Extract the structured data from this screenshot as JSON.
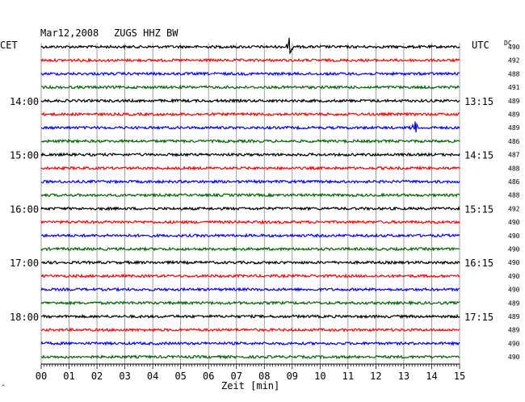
{
  "header": {
    "date": "Mar12,2008",
    "station": "ZUGS HHZ BW",
    "left_tz": "CET",
    "right_tz": "UTC",
    "dc_label": "DC"
  },
  "chart_data": {
    "type": "line",
    "title": "Mar12,2008   ZUGS HHZ BW",
    "xlabel": "Zeit [min]",
    "xlim": [
      0,
      15
    ],
    "x_ticks": [
      "00",
      "01",
      "02",
      "03",
      "04",
      "05",
      "06",
      "07",
      "08",
      "09",
      "10",
      "11",
      "12",
      "13",
      "14",
      "15"
    ],
    "trace_minutes": 15,
    "trace_colors": [
      "#000000",
      "#ff0000",
      "#0000ff",
      "#006600"
    ],
    "left_hour_labels": [
      {
        "row": 4,
        "text": "14:00"
      },
      {
        "row": 8,
        "text": "15:00"
      },
      {
        "row": 12,
        "text": "16:00"
      },
      {
        "row": 16,
        "text": "17:00"
      },
      {
        "row": 20,
        "text": "18:00"
      }
    ],
    "right_hour_labels": [
      {
        "row": 4,
        "text": "13:15"
      },
      {
        "row": 8,
        "text": "14:15"
      },
      {
        "row": 12,
        "text": "15:15"
      },
      {
        "row": 16,
        "text": "16:15"
      },
      {
        "row": 20,
        "text": "17:15"
      }
    ],
    "dc_offsets": [
      490,
      492,
      488,
      491,
      489,
      489,
      489,
      486,
      487,
      488,
      486,
      488,
      492,
      490,
      490,
      490,
      490,
      490,
      490,
      489,
      489,
      489,
      490,
      490
    ],
    "events": [
      {
        "row": 0,
        "minute": 8.9,
        "amplitude": "large"
      },
      {
        "row": 6,
        "minute": 13.4,
        "amplitude": "large"
      }
    ]
  },
  "corner_mark": "^"
}
